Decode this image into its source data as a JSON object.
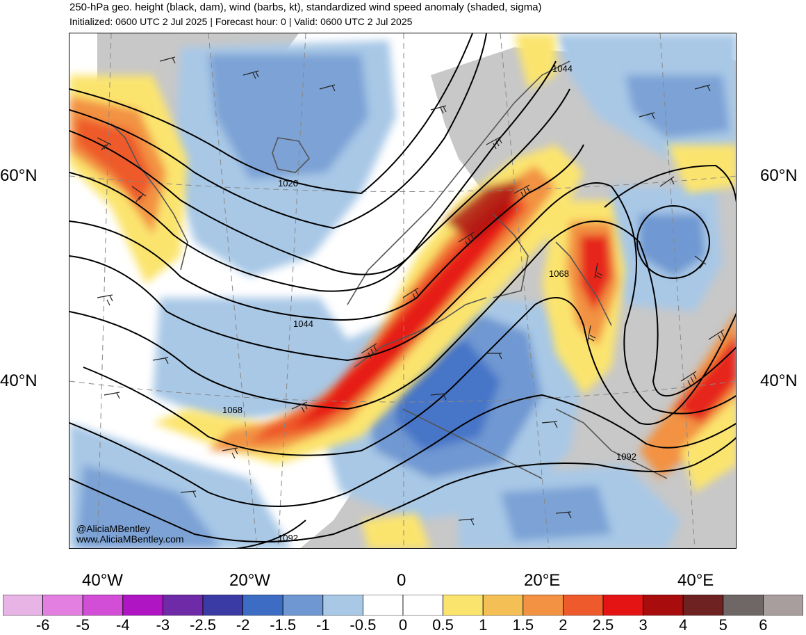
{
  "header": {
    "title": "250-hPa geo. height (black, dam), wind (barbs, kt), standardized wind speed anomaly (shaded, sigma)",
    "subtitle": "Initialized: 0600 UTC 2 Jul 2025 | Forecast hour: 0 | Valid: 0600 UTC 2 Jul 2025"
  },
  "map": {
    "projection": "lambert-conformal",
    "region": "North Atlantic and Europe",
    "lat_labels": [
      "60°N",
      "40°N"
    ],
    "lon_labels": [
      "40°W",
      "20°W",
      "0",
      "20°E",
      "40°E"
    ],
    "contour_labels": [
      "1020",
      "1044",
      "1068",
      "1092",
      "1044",
      "1068",
      "1092"
    ],
    "credits": [
      "@AliciaMBentley",
      "www.AliciaMBentley.com"
    ],
    "land_color": "#c8c8c8",
    "coast_color": "#555555"
  },
  "colorbar": {
    "labels": [
      "-6",
      "-5",
      "-4",
      "-3",
      "-2.5",
      "-2",
      "-1.5",
      "-1",
      "-0.5",
      "0",
      "0.5",
      "1",
      "1.5",
      "2",
      "2.5",
      "3",
      "4",
      "5",
      "6"
    ],
    "colors": [
      "#e8b4e6",
      "#e27fe0",
      "#d24ed6",
      "#b015c4",
      "#6f2aa8",
      "#3b3ba6",
      "#3c6cc4",
      "#6f98d2",
      "#a8c8e6",
      "#ffffff",
      "#ffffff",
      "#fbe46e",
      "#f4c056",
      "#f29242",
      "#ee5a2c",
      "#e41414",
      "#a80c0c",
      "#6e2222",
      "#6f6766",
      "#a89e9e"
    ]
  }
}
